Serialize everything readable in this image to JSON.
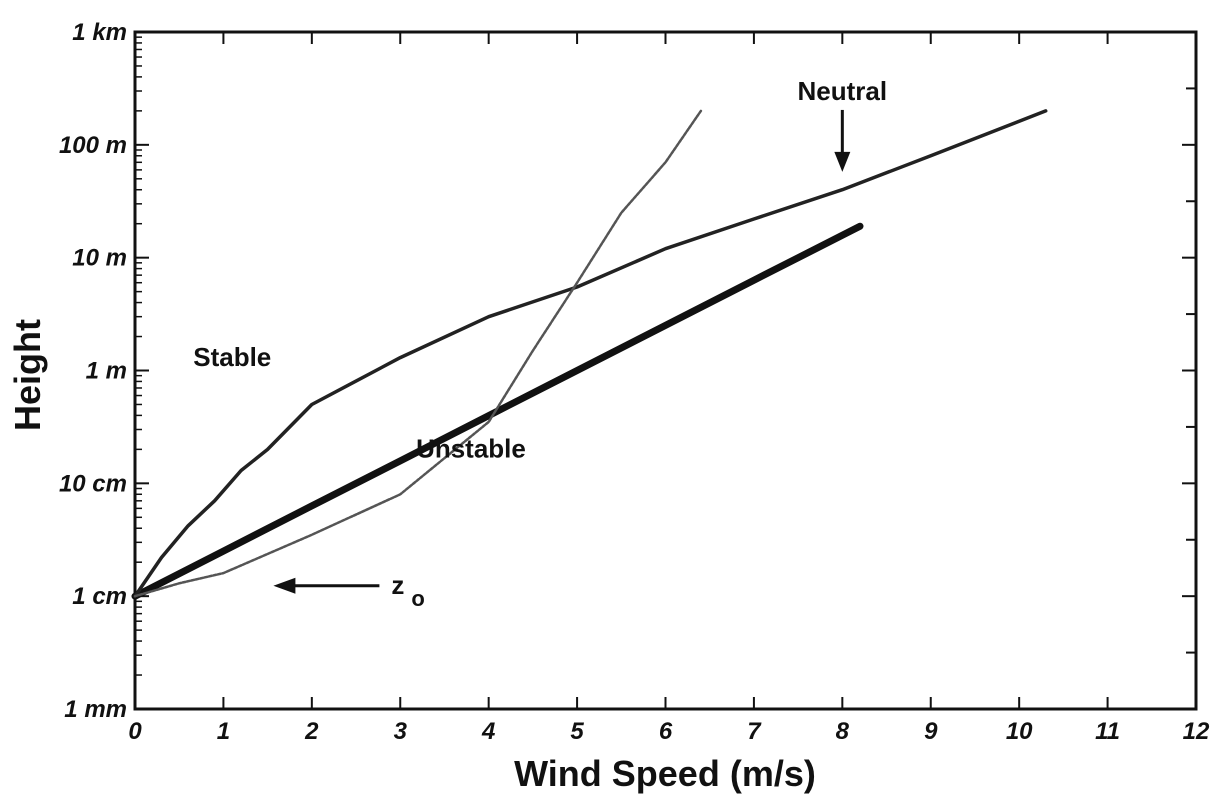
{
  "chart_data": {
    "type": "line",
    "xlabel": "Wind Speed (m/s)",
    "ylabel": "Height",
    "xlim": [
      0,
      12
    ],
    "ylim": [
      0.001,
      1000
    ],
    "yscale": "log",
    "x_ticks": [
      0,
      1,
      2,
      3,
      4,
      5,
      6,
      7,
      8,
      9,
      10,
      11,
      12
    ],
    "y_ticks": [
      {
        "value": 1000,
        "label": "1 km"
      },
      {
        "value": 100,
        "label": "100 m"
      },
      {
        "value": 10,
        "label": "10 m"
      },
      {
        "value": 1,
        "label": "1 m"
      },
      {
        "value": 0.1,
        "label": "10 cm"
      },
      {
        "value": 0.01,
        "label": "1 cm"
      },
      {
        "value": 0.001,
        "label": "1 mm"
      }
    ],
    "series": [
      {
        "name": "Neutral",
        "color": "#111111",
        "points": [
          [
            0,
            0.01
          ],
          [
            1,
            0.0251
          ],
          [
            2,
            0.0631
          ],
          [
            3,
            0.158
          ],
          [
            4,
            0.398
          ],
          [
            5,
            1.0
          ],
          [
            6,
            2.51
          ],
          [
            7,
            6.31
          ],
          [
            8,
            15.8
          ],
          [
            8.2,
            19.0
          ]
        ]
      },
      {
        "name": "Stable",
        "color": "#222222",
        "points": [
          [
            0,
            0.01
          ],
          [
            0.3,
            0.022
          ],
          [
            0.6,
            0.042
          ],
          [
            0.9,
            0.07
          ],
          [
            1.2,
            0.13
          ],
          [
            1.5,
            0.2
          ],
          [
            2.0,
            0.5
          ],
          [
            3.0,
            1.3
          ],
          [
            4.0,
            3.0
          ],
          [
            5.0,
            5.5
          ],
          [
            6.0,
            12
          ],
          [
            7.0,
            22
          ],
          [
            8.0,
            40
          ],
          [
            9.0,
            80
          ],
          [
            10.3,
            200
          ]
        ]
      },
      {
        "name": "Unstable",
        "color": "#555555",
        "points": [
          [
            0,
            0.01
          ],
          [
            0.5,
            0.013
          ],
          [
            1.0,
            0.016
          ],
          [
            2.0,
            0.035
          ],
          [
            3.0,
            0.08
          ],
          [
            4.0,
            0.35
          ],
          [
            4.5,
            1.5
          ],
          [
            5.0,
            6
          ],
          [
            5.5,
            25
          ],
          [
            6.0,
            70
          ],
          [
            6.4,
            200
          ]
        ]
      }
    ],
    "annotations": [
      {
        "text": "Neutral",
        "x": 8.0,
        "y": 250
      },
      {
        "text": "Stable",
        "x": 1.1,
        "y": 1.1
      },
      {
        "text": "Unstable",
        "x": 3.8,
        "y": 0.17
      },
      {
        "text": "z",
        "subscript": "o",
        "x": 2.9,
        "y": 0.0105
      }
    ]
  }
}
